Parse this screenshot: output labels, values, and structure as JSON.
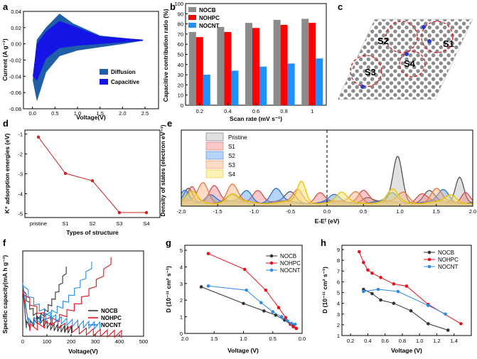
{
  "panel_labels": [
    "a",
    "b",
    "c",
    "d",
    "e",
    "f",
    "g",
    "h"
  ],
  "colors": {
    "diffusion": "#1f5fa8",
    "capacitive": "#1414e6",
    "nocb": "#8c8c8c",
    "nohpc": "#ff0000",
    "nocnt": "#1e90ff",
    "line_nocb": "#333333",
    "line_nohpc": "#e8101a",
    "line_nocnt": "#2a8be8",
    "d_line": "#cc2222"
  },
  "chart_data": [
    {
      "panel": "a",
      "type": "area",
      "title": "",
      "xlabel": "Voltage(V)",
      "ylabel": "Current (A g⁻¹)",
      "xlim": [
        -0.2,
        2.8
      ],
      "ylim": [
        -0.08,
        0.04
      ],
      "xticks": [
        "0.0",
        "0.5",
        "1.0",
        "1.5",
        "2.0",
        "2.5"
      ],
      "yticks": [
        "-0.08",
        "-0.06",
        "-0.04",
        "-0.02",
        "0.00",
        "0.02",
        "0.04"
      ],
      "legend": [
        "Diffusion",
        "Capacitive"
      ],
      "series": [
        {
          "name": "Diffusion",
          "upper": [
            [
              0.01,
              -0.045
            ],
            [
              0.1,
              0.005
            ],
            [
              0.3,
              0.02
            ],
            [
              0.6,
              0.037
            ],
            [
              0.9,
              0.025
            ],
            [
              1.5,
              0.01
            ],
            [
              2.2,
              0.006
            ],
            [
              2.45,
              0.005
            ]
          ],
          "lower": [
            [
              2.45,
              0.004
            ],
            [
              2.0,
              0.0
            ],
            [
              1.5,
              -0.004
            ],
            [
              1.0,
              -0.008
            ],
            [
              0.6,
              -0.015
            ],
            [
              0.3,
              -0.035
            ],
            [
              0.1,
              -0.07
            ],
            [
              0.01,
              -0.045
            ]
          ]
        },
        {
          "name": "Capacitive",
          "upper": [
            [
              0.01,
              -0.04
            ],
            [
              0.1,
              0.0
            ],
            [
              0.3,
              0.015
            ],
            [
              0.6,
              0.028
            ],
            [
              0.9,
              0.022
            ],
            [
              1.5,
              0.009
            ],
            [
              2.2,
              0.006
            ],
            [
              2.45,
              0.005
            ]
          ],
          "lower": [
            [
              2.45,
              0.004
            ],
            [
              2.0,
              0.002
            ],
            [
              1.5,
              0.0
            ],
            [
              1.0,
              -0.002
            ],
            [
              0.6,
              -0.005
            ],
            [
              0.3,
              -0.018
            ],
            [
              0.1,
              -0.045
            ],
            [
              0.01,
              -0.04
            ]
          ]
        }
      ]
    },
    {
      "panel": "b",
      "type": "bar",
      "xlabel": "Scan rate (mV s⁻¹)",
      "ylabel": "Capacitive contribution ratio (%)",
      "categories": [
        "0.2",
        "0.4",
        "0.6",
        "0.8",
        "1"
      ],
      "ylim": [
        0,
        100
      ],
      "yticks": [
        "0",
        "10",
        "20",
        "30",
        "40",
        "50",
        "60",
        "70",
        "80",
        "90",
        "100"
      ],
      "series": [
        {
          "name": "NOCB",
          "values": [
            72,
            77,
            81,
            84,
            85
          ]
        },
        {
          "name": "NOHPC",
          "values": [
            67,
            72,
            76,
            79,
            81
          ]
        },
        {
          "name": "NOCNT",
          "values": [
            30,
            34,
            38,
            41,
            46
          ]
        }
      ]
    },
    {
      "panel": "c",
      "type": "diagram",
      "site_labels": [
        "S1",
        "S2",
        "S3",
        "S4"
      ]
    },
    {
      "panel": "d",
      "type": "line",
      "xlabel": "Types of structure",
      "ylabel": "K⁺ adsorption energies (eV)",
      "categories": [
        "pristine",
        "S1",
        "S2",
        "S3",
        "S4"
      ],
      "values": [
        -1.15,
        -2.98,
        -3.35,
        -4.95,
        -4.95
      ],
      "ylim": [
        -5.2,
        -0.8
      ],
      "yticks": [
        "-1",
        "-2",
        "-3",
        "-4",
        "-5"
      ]
    },
    {
      "panel": "e",
      "type": "area",
      "xlabel": "E-Eᶠ (eV)",
      "ylabel": "Density of states (electron eV⁻¹)",
      "xlim": [
        -2.0,
        2.0
      ],
      "xticks": [
        "-2.0",
        "-1.5",
        "-1.0",
        "-0.5",
        "0.0",
        "0.5",
        "1.0",
        "1.5",
        "2.0"
      ],
      "legend": [
        "Pristine",
        "S1",
        "S2",
        "S3",
        "S4"
      ],
      "fermi_level": 0.0
    },
    {
      "panel": "f",
      "type": "line",
      "xlabel": "Voltage(V)",
      "ylabel": "Specific capacity(mA h g⁻¹)",
      "xlim": [
        0,
        500
      ],
      "xticks": [
        "0",
        "100",
        "200",
        "300",
        "400",
        "500"
      ],
      "series": [
        {
          "name": "NOCB"
        },
        {
          "name": "NOHPC"
        },
        {
          "name": "NOCNT"
        }
      ]
    },
    {
      "panel": "g",
      "type": "line",
      "xlabel": "Voltage (V)",
      "ylabel": "D (10⁻¹¹ cm² s⁻¹)",
      "xlim": [
        2.0,
        0.0
      ],
      "ylim": [
        0,
        5.3
      ],
      "xticks": [
        "2.0",
        "1.5",
        "1.0",
        "0.5",
        "0.0"
      ],
      "yticks": [
        "0",
        "1",
        "2",
        "3",
        "4",
        "5"
      ],
      "series": [
        {
          "name": "NOCB",
          "x": [
            1.72,
            1.0,
            0.65,
            0.45,
            0.3,
            0.2,
            0.15,
            0.1
          ],
          "y": [
            2.8,
            1.8,
            1.35,
            1.1,
            0.8,
            0.55,
            0.45,
            0.3
          ]
        },
        {
          "name": "NOHPC",
          "x": [
            1.6,
            0.98,
            0.62,
            0.4,
            0.28,
            0.2,
            0.15,
            0.1
          ],
          "y": [
            4.8,
            3.85,
            2.6,
            1.55,
            0.95,
            0.55,
            0.4,
            0.3
          ]
        },
        {
          "name": "NOCNT",
          "x": [
            1.6,
            0.95,
            0.7,
            0.5,
            0.35,
            0.25,
            0.18,
            0.12
          ],
          "y": [
            2.85,
            2.6,
            1.85,
            1.3,
            1.0,
            0.75,
            0.6,
            0.55
          ]
        }
      ]
    },
    {
      "panel": "h",
      "type": "line",
      "xlabel": "Voltage (V)",
      "ylabel": "D (10⁻¹¹ cm² s⁻¹)",
      "xlim": [
        0.1,
        1.6
      ],
      "ylim": [
        1,
        9.4
      ],
      "xticks": [
        "0.2",
        "0.4",
        "0.6",
        "0.8",
        "1.0",
        "1.2",
        "1.4"
      ],
      "yticks": [
        "1",
        "2",
        "3",
        "4",
        "5",
        "6",
        "7",
        "8",
        "9"
      ],
      "series": [
        {
          "name": "NOCB",
          "x": [
            0.35,
            0.45,
            0.55,
            0.7,
            0.9,
            1.1,
            1.33
          ],
          "y": [
            5.3,
            4.9,
            4.3,
            4.0,
            3.3,
            2.1,
            1.5
          ]
        },
        {
          "name": "NOHPC",
          "x": [
            0.3,
            0.35,
            0.4,
            0.45,
            0.55,
            0.7,
            0.85,
            1.1,
            1.48
          ],
          "y": [
            8.8,
            7.8,
            7.1,
            6.8,
            6.4,
            5.8,
            5.6,
            3.9,
            2.1
          ]
        },
        {
          "name": "NOCNT",
          "x": [
            0.35,
            0.52,
            0.75,
            1.1,
            1.3
          ],
          "y": [
            5.1,
            5.3,
            5.1,
            3.8,
            3.0
          ]
        }
      ]
    }
  ]
}
